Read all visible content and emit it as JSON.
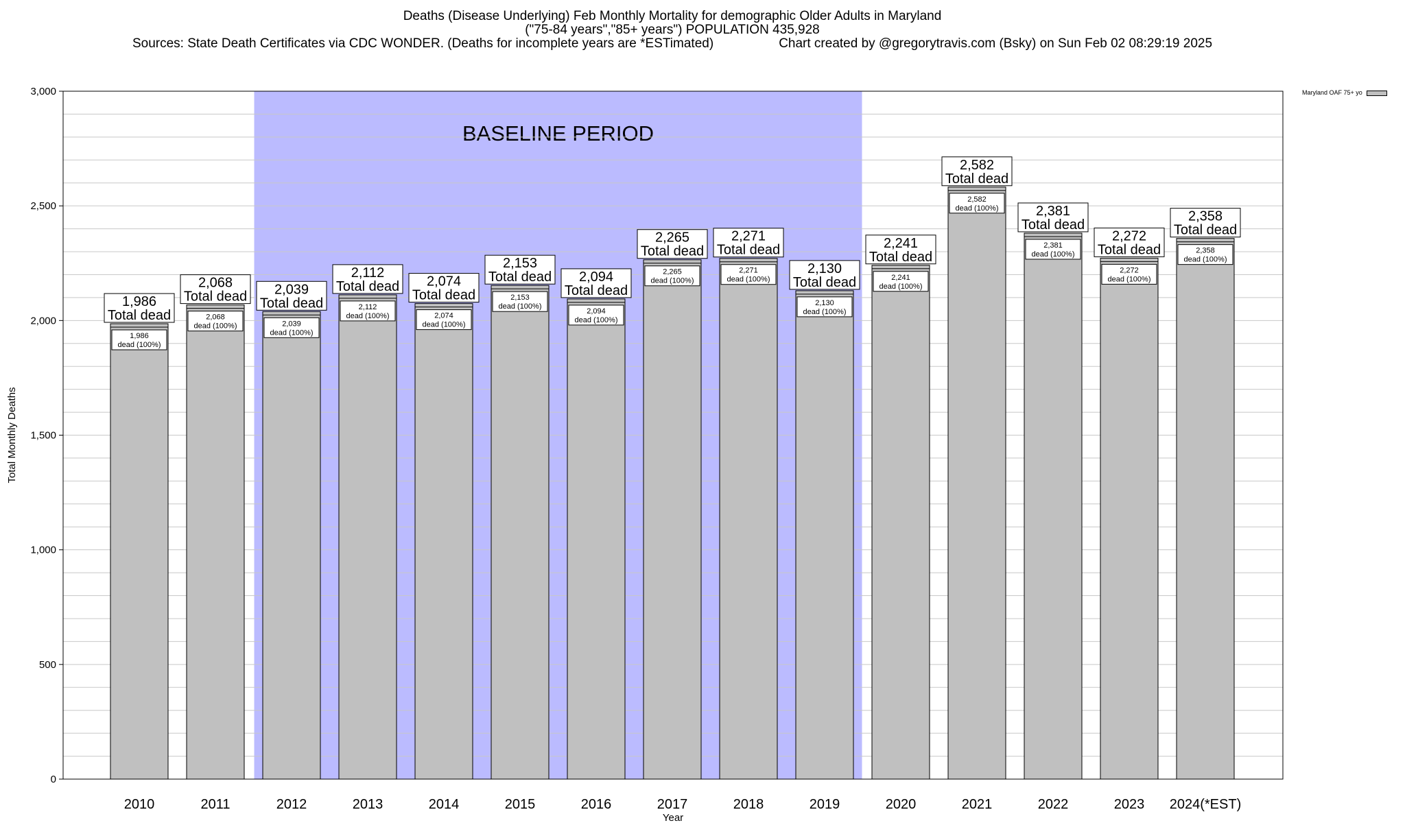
{
  "header": {
    "title_line1": "Deaths (Disease Underlying) Feb Monthly Mortality for demographic Older Adults in Maryland",
    "title_line2": "(\"75-84 years\",\"85+ years\") POPULATION 435,928",
    "sources": "Sources: State Death Certificates via CDC WONDER. (Deaths for incomplete years are *ESTimated)",
    "credit": "Chart created by @gregorytravis.com (Bsky) on Sun Feb 02 08:29:19 2025"
  },
  "legend": {
    "label": "Maryland OAF 75+ yo"
  },
  "chart_data": {
    "type": "bar",
    "xlabel": "Year",
    "ylabel": "Total Monthly Deaths",
    "ylim": [
      0,
      3000
    ],
    "yticks": [
      0,
      500,
      1000,
      1500,
      2000,
      2500,
      3000
    ],
    "ytick_labels": [
      "0",
      "500",
      "1,000",
      "1,500",
      "2,000",
      "2,500",
      "3,000"
    ],
    "grid": true,
    "legend_position": "top-right",
    "categories": [
      "2010",
      "2011",
      "2012",
      "2013",
      "2014",
      "2015",
      "2016",
      "2017",
      "2018",
      "2019",
      "2020",
      "2021",
      "2022",
      "2023",
      "2024(*EST)"
    ],
    "series": [
      {
        "name": "Maryland OAF 75+ yo",
        "values": [
          1986,
          2068,
          2039,
          2112,
          2074,
          2153,
          2094,
          2265,
          2271,
          2130,
          2241,
          2582,
          2381,
          2272,
          2358
        ]
      }
    ],
    "bar_color": "#c0c0c0",
    "top_labels": [
      "1,986",
      "2,068",
      "2,039",
      "2,112",
      "2,074",
      "2,153",
      "2,094",
      "2,265",
      "2,271",
      "2,130",
      "2,241",
      "2,582",
      "2,381",
      "2,272",
      "2,358"
    ],
    "top_label_suffix": "Total dead",
    "inner_label_suffix": "dead (100%)",
    "baseline_period": {
      "label": "BASELINE PERIOD",
      "start": "2012",
      "end": "2019",
      "color": "#bbbbff"
    }
  }
}
